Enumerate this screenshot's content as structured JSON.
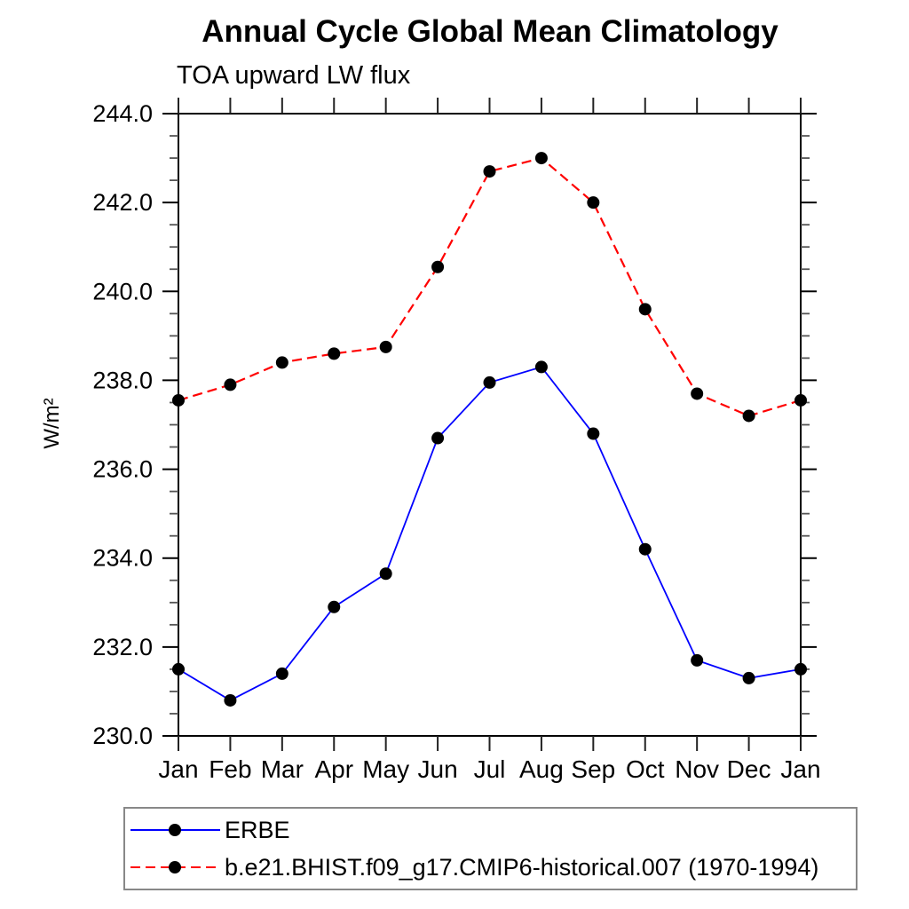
{
  "chart_data": {
    "type": "line",
    "title": "Annual Cycle Global Mean Climatology",
    "subtitle": "TOA upward LW flux",
    "ylabel": "W/m²",
    "xlabel": "",
    "categories": [
      "Jan",
      "Feb",
      "Mar",
      "Apr",
      "May",
      "Jun",
      "Jul",
      "Aug",
      "Sep",
      "Oct",
      "Nov",
      "Dec",
      "Jan"
    ],
    "ylim": [
      230.0,
      244.0
    ],
    "ytick_step": 2.0,
    "ytick_minor_step": 0.5,
    "ytick_labels": [
      "230.0",
      "232.0",
      "234.0",
      "236.0",
      "238.0",
      "240.0",
      "242.0",
      "244.0"
    ],
    "grid": false,
    "legend_position": "bottom-left-box",
    "series": [
      {
        "name": "ERBE",
        "line_color": "#0000ff",
        "line_style": "solid",
        "marker": "filled-circle",
        "marker_color": "#000000",
        "values": [
          231.5,
          230.8,
          231.4,
          232.9,
          233.65,
          236.7,
          237.95,
          238.3,
          236.8,
          234.2,
          231.7,
          231.3,
          231.5
        ]
      },
      {
        "name": "b.e21.BHIST.f09_g17.CMIP6-historical.007 (1970-1994)",
        "line_color": "#ff0000",
        "line_style": "dashed",
        "marker": "filled-circle",
        "marker_color": "#000000",
        "values": [
          237.55,
          237.9,
          238.4,
          238.6,
          238.75,
          240.55,
          242.7,
          243.0,
          242.0,
          239.6,
          237.7,
          237.2,
          237.55
        ]
      }
    ]
  }
}
